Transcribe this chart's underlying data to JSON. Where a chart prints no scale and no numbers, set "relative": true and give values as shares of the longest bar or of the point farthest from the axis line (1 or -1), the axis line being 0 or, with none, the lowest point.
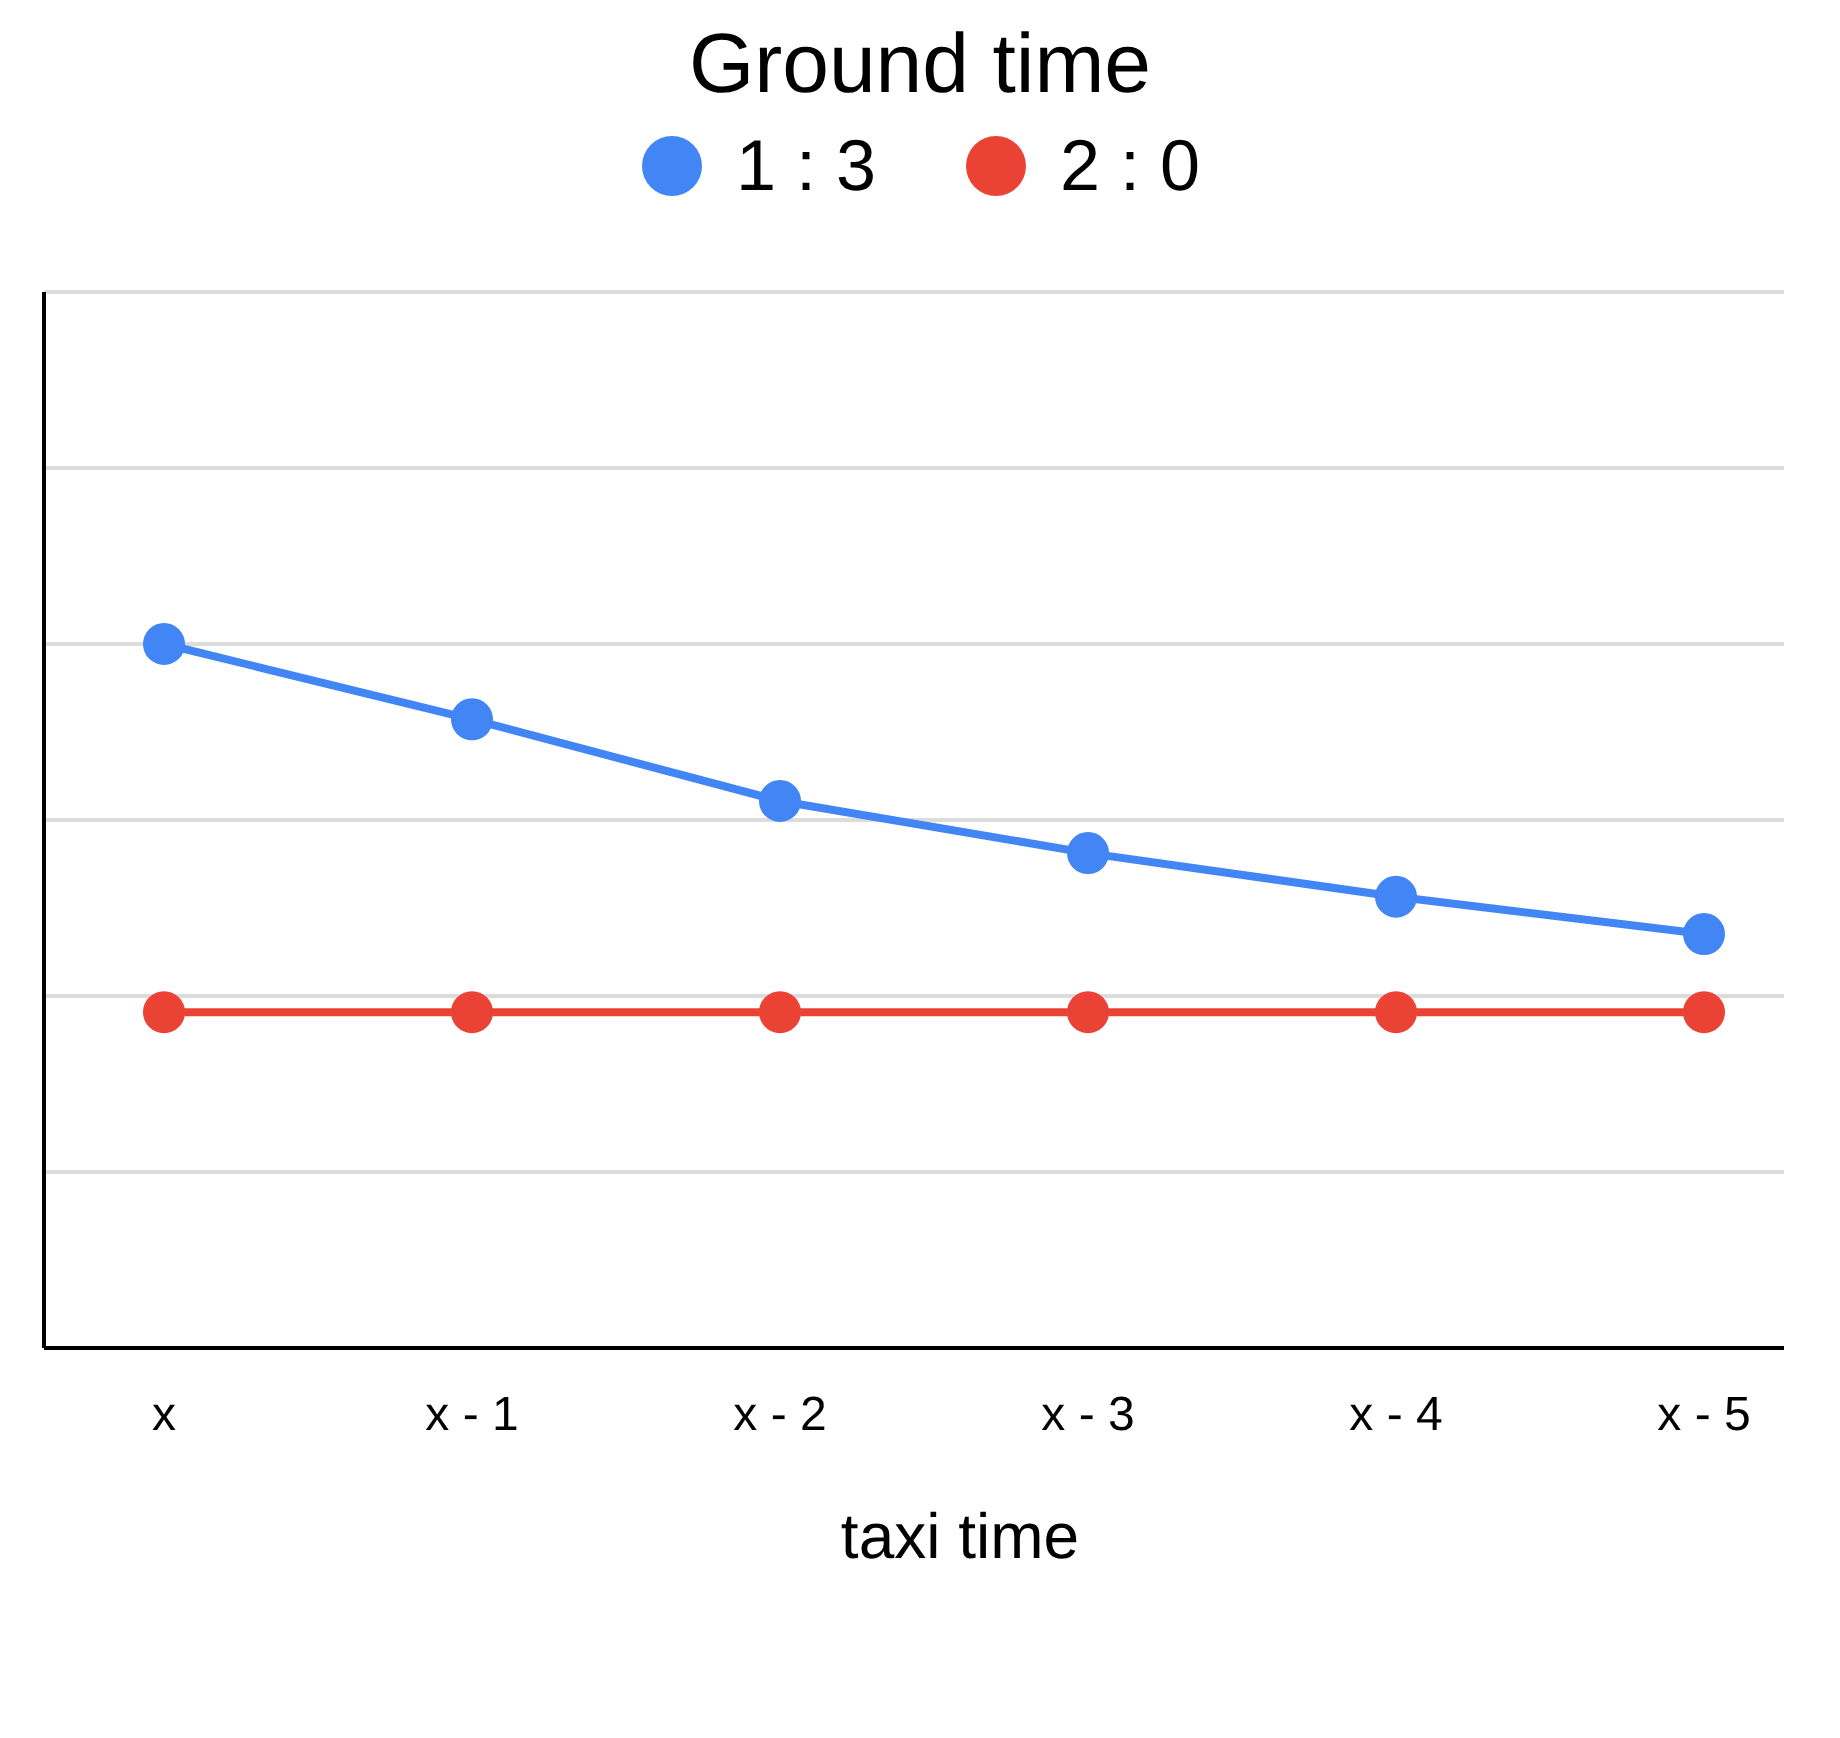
{
  "chart_data": {
    "type": "line",
    "title": "Ground time",
    "xlabel": "taxi time",
    "relative": true,
    "categories": [
      "x",
      "x - 1",
      "x - 2",
      "x - 3",
      "x - 4",
      "x - 5"
    ],
    "series": [
      {
        "name": "1 : 3",
        "color": "#4285f4",
        "values": [
          1,
          0.893,
          0.777,
          0.703,
          0.641,
          0.588
        ]
      },
      {
        "name": "2 : 0",
        "color": "#ea4335",
        "values": [
          0.477,
          0.477,
          0.477,
          0.477,
          0.477,
          0.477
        ]
      }
    ],
    "grid": "y",
    "legend": "top",
    "marker": "circle",
    "line_style": "solid"
  }
}
